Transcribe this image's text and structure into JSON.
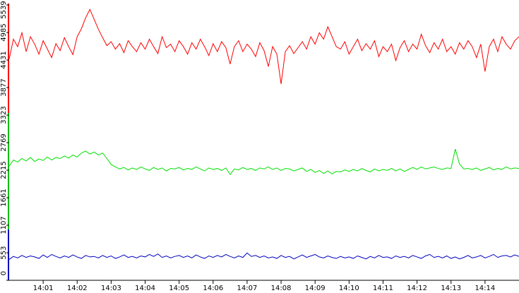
{
  "chart_data": {
    "type": "line",
    "x": [
      840,
      840.125,
      840.25,
      840.375,
      840.5,
      840.625,
      840.75,
      840.875,
      841,
      841.125,
      841.25,
      841.375,
      841.5,
      841.625,
      841.75,
      841.875,
      842,
      842.125,
      842.25,
      842.375,
      842.5,
      842.625,
      842.75,
      842.875,
      843,
      843.125,
      843.25,
      843.375,
      843.5,
      843.625,
      843.75,
      843.875,
      844,
      844.125,
      844.25,
      844.375,
      844.5,
      844.625,
      844.75,
      844.875,
      845,
      845.125,
      845.25,
      845.375,
      845.5,
      845.625,
      845.75,
      845.875,
      846,
      846.125,
      846.25,
      846.375,
      846.5,
      846.625,
      846.75,
      846.875,
      847,
      847.125,
      847.25,
      847.375,
      847.5,
      847.625,
      847.75,
      847.875,
      848,
      848.125,
      848.25,
      848.375,
      848.5,
      848.625,
      848.75,
      848.875,
      849,
      849.125,
      849.25,
      849.375,
      849.5,
      849.625,
      849.75,
      849.875,
      850,
      850.125,
      850.25,
      850.375,
      850.5,
      850.625,
      850.75,
      850.875,
      851,
      851.125,
      851.25,
      851.375,
      851.5,
      851.625,
      851.75,
      851.875,
      852,
      852.125,
      852.25,
      852.375,
      852.5,
      852.625,
      852.75,
      852.875,
      853,
      853.125,
      853.25,
      853.375,
      853.5,
      853.625,
      853.75,
      853.875,
      854,
      854.125,
      854.25,
      854.375,
      854.5,
      854.625,
      854.75,
      854.875,
      855
    ],
    "xlim": [
      840,
      855
    ],
    "xticks": [
      {
        "value": 841,
        "label": "14:01"
      },
      {
        "value": 842,
        "label": "14:02"
      },
      {
        "value": 843,
        "label": "14:03"
      },
      {
        "value": 844,
        "label": "14:04"
      },
      {
        "value": 845,
        "label": "14:05"
      },
      {
        "value": 846,
        "label": "14:06"
      },
      {
        "value": 847,
        "label": "14:07"
      },
      {
        "value": 848,
        "label": "14:08"
      },
      {
        "value": 849,
        "label": "14:09"
      },
      {
        "value": 850,
        "label": "14:10"
      },
      {
        "value": 851,
        "label": "14:11"
      },
      {
        "value": 852,
        "label": "14:12"
      },
      {
        "value": 853,
        "label": "14:13"
      },
      {
        "value": 854,
        "label": "14:14"
      }
    ],
    "ylim": [
      0,
      5539
    ],
    "yticks": [
      0,
      553,
      1107,
      1661,
      2215,
      2769,
      3323,
      3877,
      4431,
      4985,
      5539
    ],
    "series": [
      {
        "color": "#ff0000",
        "values": [
          4450,
          4850,
          4700,
          4980,
          4600,
          4900,
          4750,
          4550,
          4820,
          4650,
          4480,
          4760,
          4620,
          4880,
          4700,
          4540,
          4900,
          5060,
          5280,
          5450,
          5250,
          5050,
          4880,
          4720,
          4800,
          4650,
          4760,
          4580,
          4820,
          4700,
          4600,
          4780,
          4650,
          4850,
          4700,
          4560,
          4900,
          4680,
          4750,
          4600,
          4820,
          4700,
          4550,
          4780,
          4650,
          4850,
          4700,
          4520,
          4760,
          4600,
          4800,
          4680,
          4350,
          4700,
          4820,
          4600,
          4750,
          4650,
          4500,
          4780,
          4620,
          4300,
          4700,
          4550,
          3950,
          4600,
          4720,
          4560,
          4680,
          4800,
          4650,
          4900,
          4750,
          4980,
          4850,
          5100,
          4900,
          4700,
          4650,
          4800,
          4550,
          4700,
          4850,
          4620,
          4760,
          4650,
          4820,
          4500,
          4700,
          4600,
          4750,
          4420,
          4680,
          4820,
          4600,
          4750,
          4650,
          4950,
          4720,
          4580,
          4780,
          4650,
          4850,
          4600,
          4700,
          4550,
          4780,
          4650,
          4820,
          4700,
          4480,
          4750,
          4200,
          4700,
          4850,
          4600,
          4900,
          4750,
          4650,
          4820,
          4900
        ]
      },
      {
        "color": "#00e000",
        "values": [
          2300,
          2420,
          2380,
          2450,
          2400,
          2470,
          2390,
          2440,
          2410,
          2480,
          2420,
          2470,
          2450,
          2500,
          2460,
          2520,
          2480,
          2560,
          2600,
          2540,
          2580,
          2520,
          2560,
          2450,
          2330,
          2280,
          2240,
          2270,
          2220,
          2260,
          2230,
          2280,
          2240,
          2210,
          2270,
          2230,
          2260,
          2200,
          2250,
          2240,
          2270,
          2220,
          2250,
          2230,
          2280,
          2240,
          2200,
          2260,
          2230,
          2250,
          2210,
          2260,
          2130,
          2240,
          2220,
          2270,
          2230,
          2250,
          2210,
          2260,
          2240,
          2280,
          2230,
          2260,
          2210,
          2250,
          2240,
          2200,
          2230,
          2260,
          2190,
          2230,
          2170,
          2210,
          2150,
          2200,
          2140,
          2190,
          2180,
          2220,
          2190,
          2230,
          2200,
          2250,
          2210,
          2180,
          2240,
          2200,
          2230,
          2210,
          2250,
          2200,
          2240,
          2190,
          2230,
          2270,
          2230,
          2280,
          2240,
          2260,
          2280,
          2250,
          2230,
          2260,
          2250,
          2640,
          2340,
          2240,
          2250,
          2230,
          2260,
          2210,
          2240,
          2270,
          2220,
          2250,
          2230,
          2280,
          2240,
          2260,
          2250
        ]
      },
      {
        "color": "#0000c0",
        "values": [
          420,
          480,
          450,
          500,
          460,
          490,
          470,
          440,
          510,
          460,
          520,
          480,
          450,
          490,
          460,
          510,
          470,
          440,
          500,
          470,
          480,
          450,
          500,
          460,
          490,
          440,
          470,
          510,
          460,
          480,
          450,
          490,
          470,
          520,
          480,
          530,
          460,
          490,
          450,
          480,
          500,
          460,
          490,
          450,
          510,
          470,
          440,
          490,
          460,
          500,
          470,
          520,
          480,
          450,
          490,
          460,
          550,
          480,
          500,
          460,
          490,
          450,
          470,
          440,
          500,
          460,
          480,
          430,
          470,
          510,
          460,
          490,
          520,
          470,
          450,
          490,
          460,
          440,
          480,
          450,
          470,
          440,
          490,
          460,
          430,
          480,
          450,
          500,
          460,
          470,
          440,
          490,
          460,
          480,
          450,
          500,
          470,
          440,
          490,
          520,
          460,
          480,
          450,
          490,
          440,
          470,
          430,
          460,
          500,
          450,
          470,
          500,
          450,
          480,
          520,
          460,
          490,
          500,
          470,
          510,
          480
        ]
      }
    ]
  }
}
